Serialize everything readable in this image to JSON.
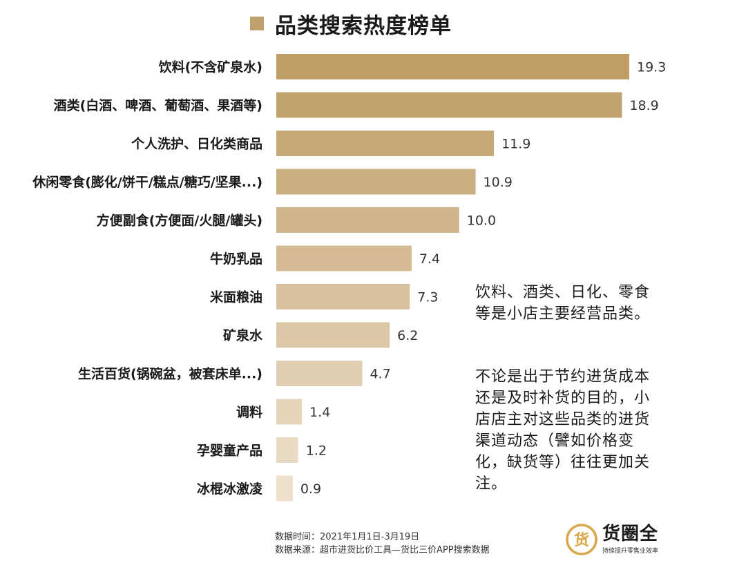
{
  "title": "品类搜索热度榜单",
  "colors": {
    "title_square": "#c0a06c",
    "bar_gradient": [
      "#bf9d64",
      "#ede0cc"
    ]
  },
  "chart_data": {
    "type": "bar",
    "orientation": "horizontal",
    "categories": [
      "饮料(不含矿泉水)",
      "酒类(白酒、啤酒、葡萄酒、果酒等)",
      "个人洗护、日化类商品",
      "休闲零食(膨化/饼干/糕点/糖巧/坚果...)",
      "方便副食(方便面/火腿/罐头)",
      "牛奶乳品",
      "米面粮油",
      "矿泉水",
      "生活百货(锅碗盆，被套床单...)",
      "调料",
      "孕婴童产品",
      "冰棍冰激凌"
    ],
    "values": [
      19.3,
      18.9,
      11.9,
      10.9,
      10.0,
      7.4,
      7.3,
      6.2,
      4.7,
      1.4,
      1.2,
      0.9
    ],
    "value_labels": [
      "19.3",
      "18.9",
      "11.9",
      "10.9",
      "10.0",
      "7.4",
      "7.3",
      "6.2",
      "4.7",
      "1.4",
      "1.2",
      "0.9"
    ],
    "xlim": [
      0,
      19.3
    ],
    "grid": false,
    "legend": "none"
  },
  "notes": {
    "note1": "饮料、酒类、日化、零食等是小店主要经营品类。",
    "note2": "不论是出于节约进货成本还是及时补货的目的，小店店主对这些品类的进货渠道动态（譬如价格变化，缺货等）往往更加关注。"
  },
  "source": {
    "date": "数据时间：2021年1月1日-3月19日",
    "origin": "数据来源：超市进货比价工具—货比三价APP搜索数据"
  },
  "logo": {
    "mark_char": "货",
    "name": "货圈全",
    "slogan": "持续提升零售业效率"
  }
}
